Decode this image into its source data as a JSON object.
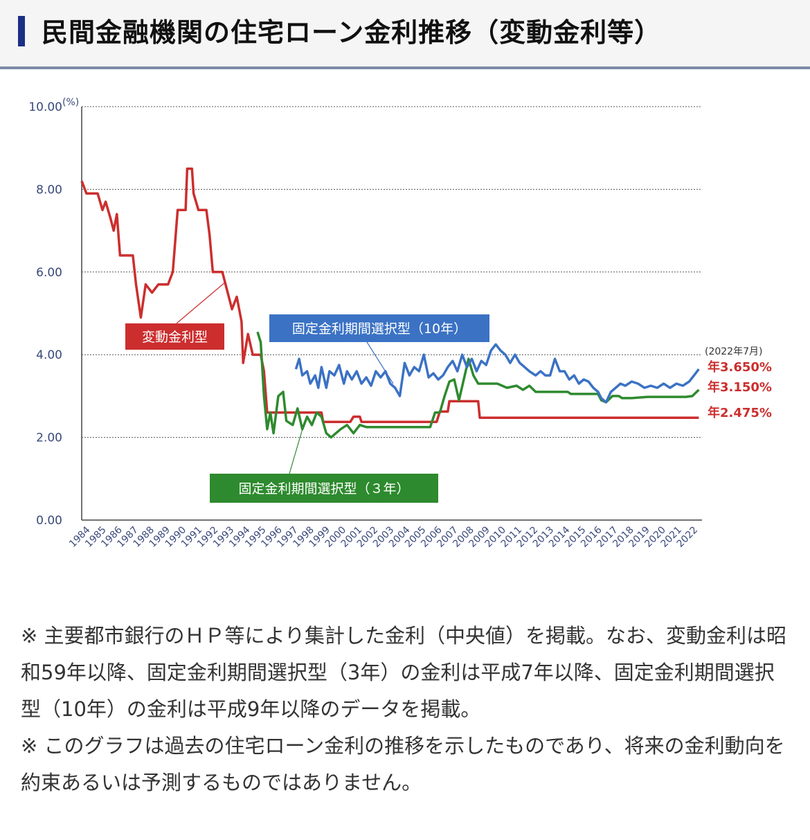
{
  "header": {
    "title": "民間金融機関の住宅ローン金利推移（変動金利等）"
  },
  "colors": {
    "accent_bar": "#1c2f86",
    "variable": "#cc2e2e",
    "fixed10": "#3b72c4",
    "fixed3": "#2e8a2e"
  },
  "chart_data": {
    "type": "line",
    "y_unit": "(%)",
    "ylim": [
      0,
      10
    ],
    "y_ticks": [
      "0.00",
      "2.00",
      "4.00",
      "6.00",
      "8.00",
      "10.00"
    ],
    "x_ticks": [
      "1984",
      "1985",
      "1986",
      "1987",
      "1988",
      "1989",
      "1990",
      "1991",
      "1992",
      "1993",
      "1994",
      "1995",
      "1996",
      "1997",
      "1998",
      "1999",
      "2000",
      "2001",
      "2002",
      "2003",
      "2004",
      "2005",
      "2006",
      "2007",
      "2008",
      "2009",
      "2010",
      "2011",
      "2012",
      "2013",
      "2014",
      "2015",
      "2016",
      "2017",
      "2018",
      "2019",
      "2020",
      "2021",
      "2022"
    ],
    "xlim": [
      1984,
      2022.8
    ],
    "grid": "horizontal dotted",
    "end_date_label": "(2022年7月)",
    "series": [
      {
        "name": "変動金利型",
        "color": "#cc2e2e",
        "end_label": "年2.475%",
        "points": [
          [
            1984.0,
            8.2
          ],
          [
            1984.3,
            7.9
          ],
          [
            1985.0,
            7.9
          ],
          [
            1985.3,
            7.5
          ],
          [
            1985.5,
            7.7
          ],
          [
            1985.8,
            7.3
          ],
          [
            1986.0,
            7.0
          ],
          [
            1986.2,
            7.4
          ],
          [
            1986.4,
            6.4
          ],
          [
            1987.2,
            6.4
          ],
          [
            1987.4,
            5.7
          ],
          [
            1987.7,
            4.9
          ],
          [
            1988.0,
            5.7
          ],
          [
            1988.4,
            5.5
          ],
          [
            1988.8,
            5.7
          ],
          [
            1989.4,
            5.7
          ],
          [
            1989.7,
            6.0
          ],
          [
            1990.0,
            7.5
          ],
          [
            1990.5,
            7.5
          ],
          [
            1990.6,
            8.5
          ],
          [
            1990.9,
            8.5
          ],
          [
            1991.0,
            7.9
          ],
          [
            1991.3,
            7.5
          ],
          [
            1991.8,
            7.5
          ],
          [
            1992.0,
            6.9
          ],
          [
            1992.2,
            6.0
          ],
          [
            1992.8,
            6.0
          ],
          [
            1993.0,
            5.7
          ],
          [
            1993.4,
            5.1
          ],
          [
            1993.7,
            5.4
          ],
          [
            1994.0,
            4.8
          ],
          [
            1994.1,
            3.8
          ],
          [
            1994.4,
            4.5
          ],
          [
            1994.7,
            4.0
          ],
          [
            1995.2,
            4.0
          ],
          [
            1995.4,
            3.6
          ],
          [
            1995.6,
            2.6
          ],
          [
            1999.0,
            2.6
          ],
          [
            1999.1,
            2.375
          ],
          [
            2000.8,
            2.375
          ],
          [
            2001.0,
            2.5
          ],
          [
            2001.4,
            2.5
          ],
          [
            2001.5,
            2.375
          ],
          [
            2006.2,
            2.375
          ],
          [
            2006.4,
            2.625
          ],
          [
            2006.9,
            2.625
          ],
          [
            2007.0,
            2.875
          ],
          [
            2008.8,
            2.875
          ],
          [
            2008.9,
            2.475
          ],
          [
            2022.6,
            2.475
          ]
        ]
      },
      {
        "name": "固定金利期間選択型（3年）",
        "color": "#2e8a2e",
        "end_label": "年3.150%",
        "points": [
          [
            1995.0,
            4.55
          ],
          [
            1995.2,
            4.3
          ],
          [
            1995.4,
            3.0
          ],
          [
            1995.6,
            2.2
          ],
          [
            1995.8,
            2.6
          ],
          [
            1996.0,
            2.1
          ],
          [
            1996.3,
            3.0
          ],
          [
            1996.6,
            3.1
          ],
          [
            1996.8,
            2.4
          ],
          [
            1997.2,
            2.3
          ],
          [
            1997.5,
            2.7
          ],
          [
            1997.8,
            2.2
          ],
          [
            1998.1,
            2.5
          ],
          [
            1998.4,
            2.3
          ],
          [
            1998.7,
            2.6
          ],
          [
            1999.0,
            2.5
          ],
          [
            1999.3,
            2.1
          ],
          [
            1999.6,
            2.0
          ],
          [
            1999.9,
            2.1
          ],
          [
            2000.2,
            2.2
          ],
          [
            2000.6,
            2.3
          ],
          [
            2001.0,
            2.1
          ],
          [
            2001.4,
            2.3
          ],
          [
            2001.8,
            2.25
          ],
          [
            2005.8,
            2.25
          ],
          [
            2006.1,
            2.6
          ],
          [
            2006.4,
            2.6
          ],
          [
            2006.7,
            3.0
          ],
          [
            2007.0,
            3.35
          ],
          [
            2007.3,
            3.4
          ],
          [
            2007.6,
            2.9
          ],
          [
            2007.9,
            3.4
          ],
          [
            2008.2,
            3.9
          ],
          [
            2008.5,
            3.5
          ],
          [
            2008.8,
            3.3
          ],
          [
            2009.2,
            3.3
          ],
          [
            2010.0,
            3.3
          ],
          [
            2010.6,
            3.2
          ],
          [
            2011.2,
            3.25
          ],
          [
            2011.6,
            3.15
          ],
          [
            2012.0,
            3.25
          ],
          [
            2012.4,
            3.1
          ],
          [
            2014.4,
            3.1
          ],
          [
            2014.6,
            3.05
          ],
          [
            2016.3,
            3.05
          ],
          [
            2016.5,
            2.9
          ],
          [
            2016.8,
            2.85
          ],
          [
            2017.2,
            3.0
          ],
          [
            2017.6,
            3.0
          ],
          [
            2017.8,
            2.95
          ],
          [
            2018.4,
            2.95
          ],
          [
            2019.4,
            2.98
          ],
          [
            2021.8,
            2.98
          ],
          [
            2022.2,
            3.0
          ],
          [
            2022.6,
            3.15
          ]
        ]
      },
      {
        "name": "固定金利期間選択型（10年）",
        "color": "#3b72c4",
        "end_label": "年3.650%",
        "points": [
          [
            1997.4,
            3.65
          ],
          [
            1997.6,
            3.9
          ],
          [
            1997.8,
            3.5
          ],
          [
            1998.1,
            3.6
          ],
          [
            1998.3,
            3.3
          ],
          [
            1998.6,
            3.5
          ],
          [
            1998.8,
            3.2
          ],
          [
            1999.0,
            3.7
          ],
          [
            1999.3,
            3.2
          ],
          [
            1999.5,
            3.6
          ],
          [
            1999.8,
            3.5
          ],
          [
            2000.1,
            3.75
          ],
          [
            2000.4,
            3.3
          ],
          [
            2000.6,
            3.6
          ],
          [
            2000.9,
            3.4
          ],
          [
            2001.2,
            3.6
          ],
          [
            2001.5,
            3.3
          ],
          [
            2001.8,
            3.45
          ],
          [
            2002.1,
            3.25
          ],
          [
            2002.4,
            3.6
          ],
          [
            2002.7,
            3.45
          ],
          [
            2003.0,
            3.6
          ],
          [
            2003.3,
            3.3
          ],
          [
            2003.6,
            3.2
          ],
          [
            2003.9,
            3.0
          ],
          [
            2004.2,
            3.8
          ],
          [
            2004.5,
            3.5
          ],
          [
            2004.8,
            3.7
          ],
          [
            2005.1,
            3.6
          ],
          [
            2005.4,
            4.0
          ],
          [
            2005.7,
            3.45
          ],
          [
            2006.0,
            3.55
          ],
          [
            2006.3,
            3.4
          ],
          [
            2006.6,
            3.5
          ],
          [
            2006.9,
            3.7
          ],
          [
            2007.2,
            3.85
          ],
          [
            2007.5,
            3.6
          ],
          [
            2007.8,
            4.0
          ],
          [
            2008.1,
            3.7
          ],
          [
            2008.4,
            3.9
          ],
          [
            2008.7,
            3.6
          ],
          [
            2009.0,
            3.85
          ],
          [
            2009.3,
            3.75
          ],
          [
            2009.6,
            4.1
          ],
          [
            2009.9,
            4.25
          ],
          [
            2010.2,
            4.1
          ],
          [
            2010.5,
            4.0
          ],
          [
            2010.8,
            3.8
          ],
          [
            2011.1,
            4.0
          ],
          [
            2011.4,
            3.8
          ],
          [
            2011.7,
            3.7
          ],
          [
            2012.0,
            3.6
          ],
          [
            2012.4,
            3.5
          ],
          [
            2012.7,
            3.6
          ],
          [
            2013.0,
            3.5
          ],
          [
            2013.3,
            3.5
          ],
          [
            2013.6,
            3.9
          ],
          [
            2013.9,
            3.6
          ],
          [
            2014.2,
            3.6
          ],
          [
            2014.5,
            3.4
          ],
          [
            2014.8,
            3.5
          ],
          [
            2015.1,
            3.3
          ],
          [
            2015.4,
            3.4
          ],
          [
            2015.7,
            3.35
          ],
          [
            2016.0,
            3.2
          ],
          [
            2016.3,
            3.1
          ],
          [
            2016.5,
            2.95
          ],
          [
            2016.8,
            2.85
          ],
          [
            2017.1,
            3.1
          ],
          [
            2017.4,
            3.2
          ],
          [
            2017.7,
            3.3
          ],
          [
            2018.0,
            3.25
          ],
          [
            2018.4,
            3.35
          ],
          [
            2018.8,
            3.3
          ],
          [
            2019.2,
            3.2
          ],
          [
            2019.6,
            3.25
          ],
          [
            2020.0,
            3.2
          ],
          [
            2020.4,
            3.3
          ],
          [
            2020.8,
            3.2
          ],
          [
            2021.2,
            3.3
          ],
          [
            2021.6,
            3.25
          ],
          [
            2022.0,
            3.35
          ],
          [
            2022.3,
            3.5
          ],
          [
            2022.6,
            3.65
          ]
        ]
      }
    ],
    "callouts": [
      {
        "label": "変動金利型",
        "series": 0
      },
      {
        "label": "固定金利期間選択型（10年）",
        "series": 2
      },
      {
        "label": "固定金利期間選択型（３年）",
        "series": 1
      }
    ]
  },
  "notes": [
    "※ 主要都市銀行のＨＰ等により集計した金利（中央値）を掲載。なお、変動金利は昭和59年以降、固定金利期間選択型（3年）の金利は平成7年以降、固定金利期間選択型（10年）の金利は平成9年以降のデータを掲載。",
    "※ このグラフは過去の住宅ローン金利の推移を示したものであり、将来の金利動向を約束あるいは予測するものではありません。"
  ]
}
